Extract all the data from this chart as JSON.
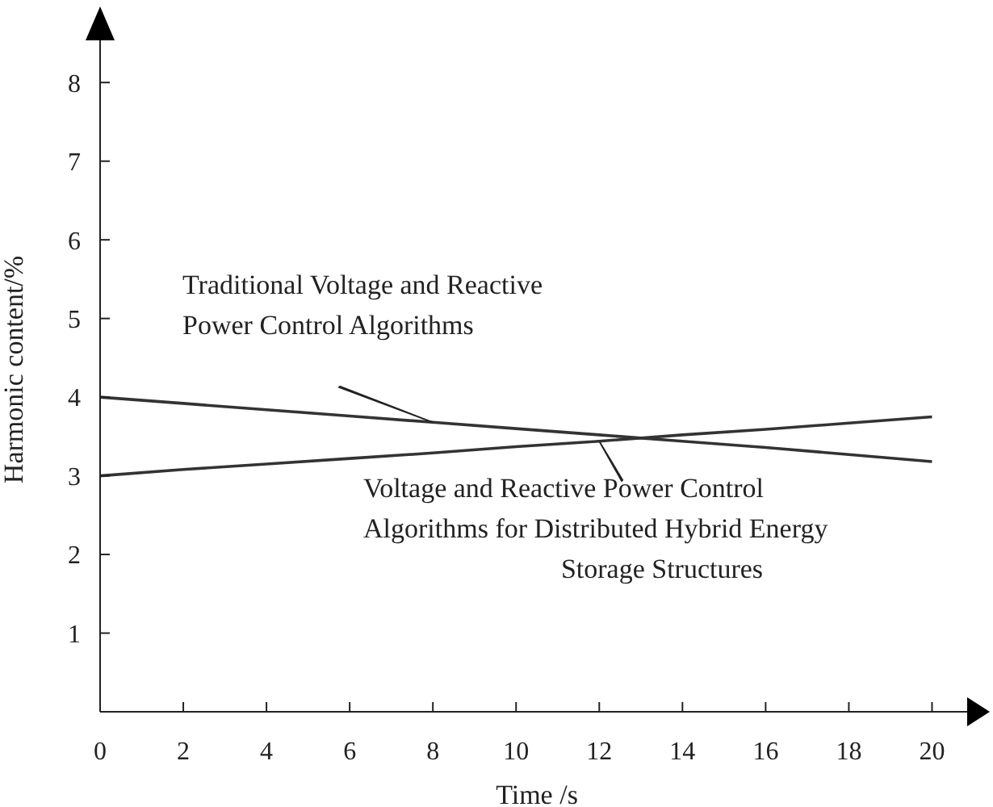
{
  "chart_data": {
    "type": "line",
    "xlabel": "Time /s",
    "ylabel": "Harmonic content/%",
    "x": [
      0,
      2,
      4,
      6,
      8,
      10,
      12,
      14,
      16,
      18,
      20
    ],
    "series": [
      {
        "name": "Traditional Voltage and Reactive Power Control Algorithms",
        "color": "#333333",
        "values": [
          4.0,
          3.92,
          3.84,
          3.76,
          3.68,
          3.6,
          3.52,
          3.44,
          3.36,
          3.27,
          3.18
        ]
      },
      {
        "name": "Voltage and Reactive Power Control Algorithms for Distributed Hybrid Energy Storage Structures",
        "color": "#333333",
        "values": [
          3.0,
          3.08,
          3.15,
          3.22,
          3.29,
          3.37,
          3.44,
          3.52,
          3.59,
          3.67,
          3.75
        ]
      }
    ],
    "xlim": [
      0,
      21
    ],
    "ylim": [
      0,
      8.7
    ],
    "xticks": [
      0,
      2,
      4,
      6,
      8,
      10,
      12,
      14,
      16,
      18,
      20
    ],
    "yticks": [
      1,
      2,
      3,
      4,
      5,
      6,
      7,
      8
    ],
    "grid": false,
    "legend": false,
    "marker": "none",
    "line_style": "solid"
  }
}
